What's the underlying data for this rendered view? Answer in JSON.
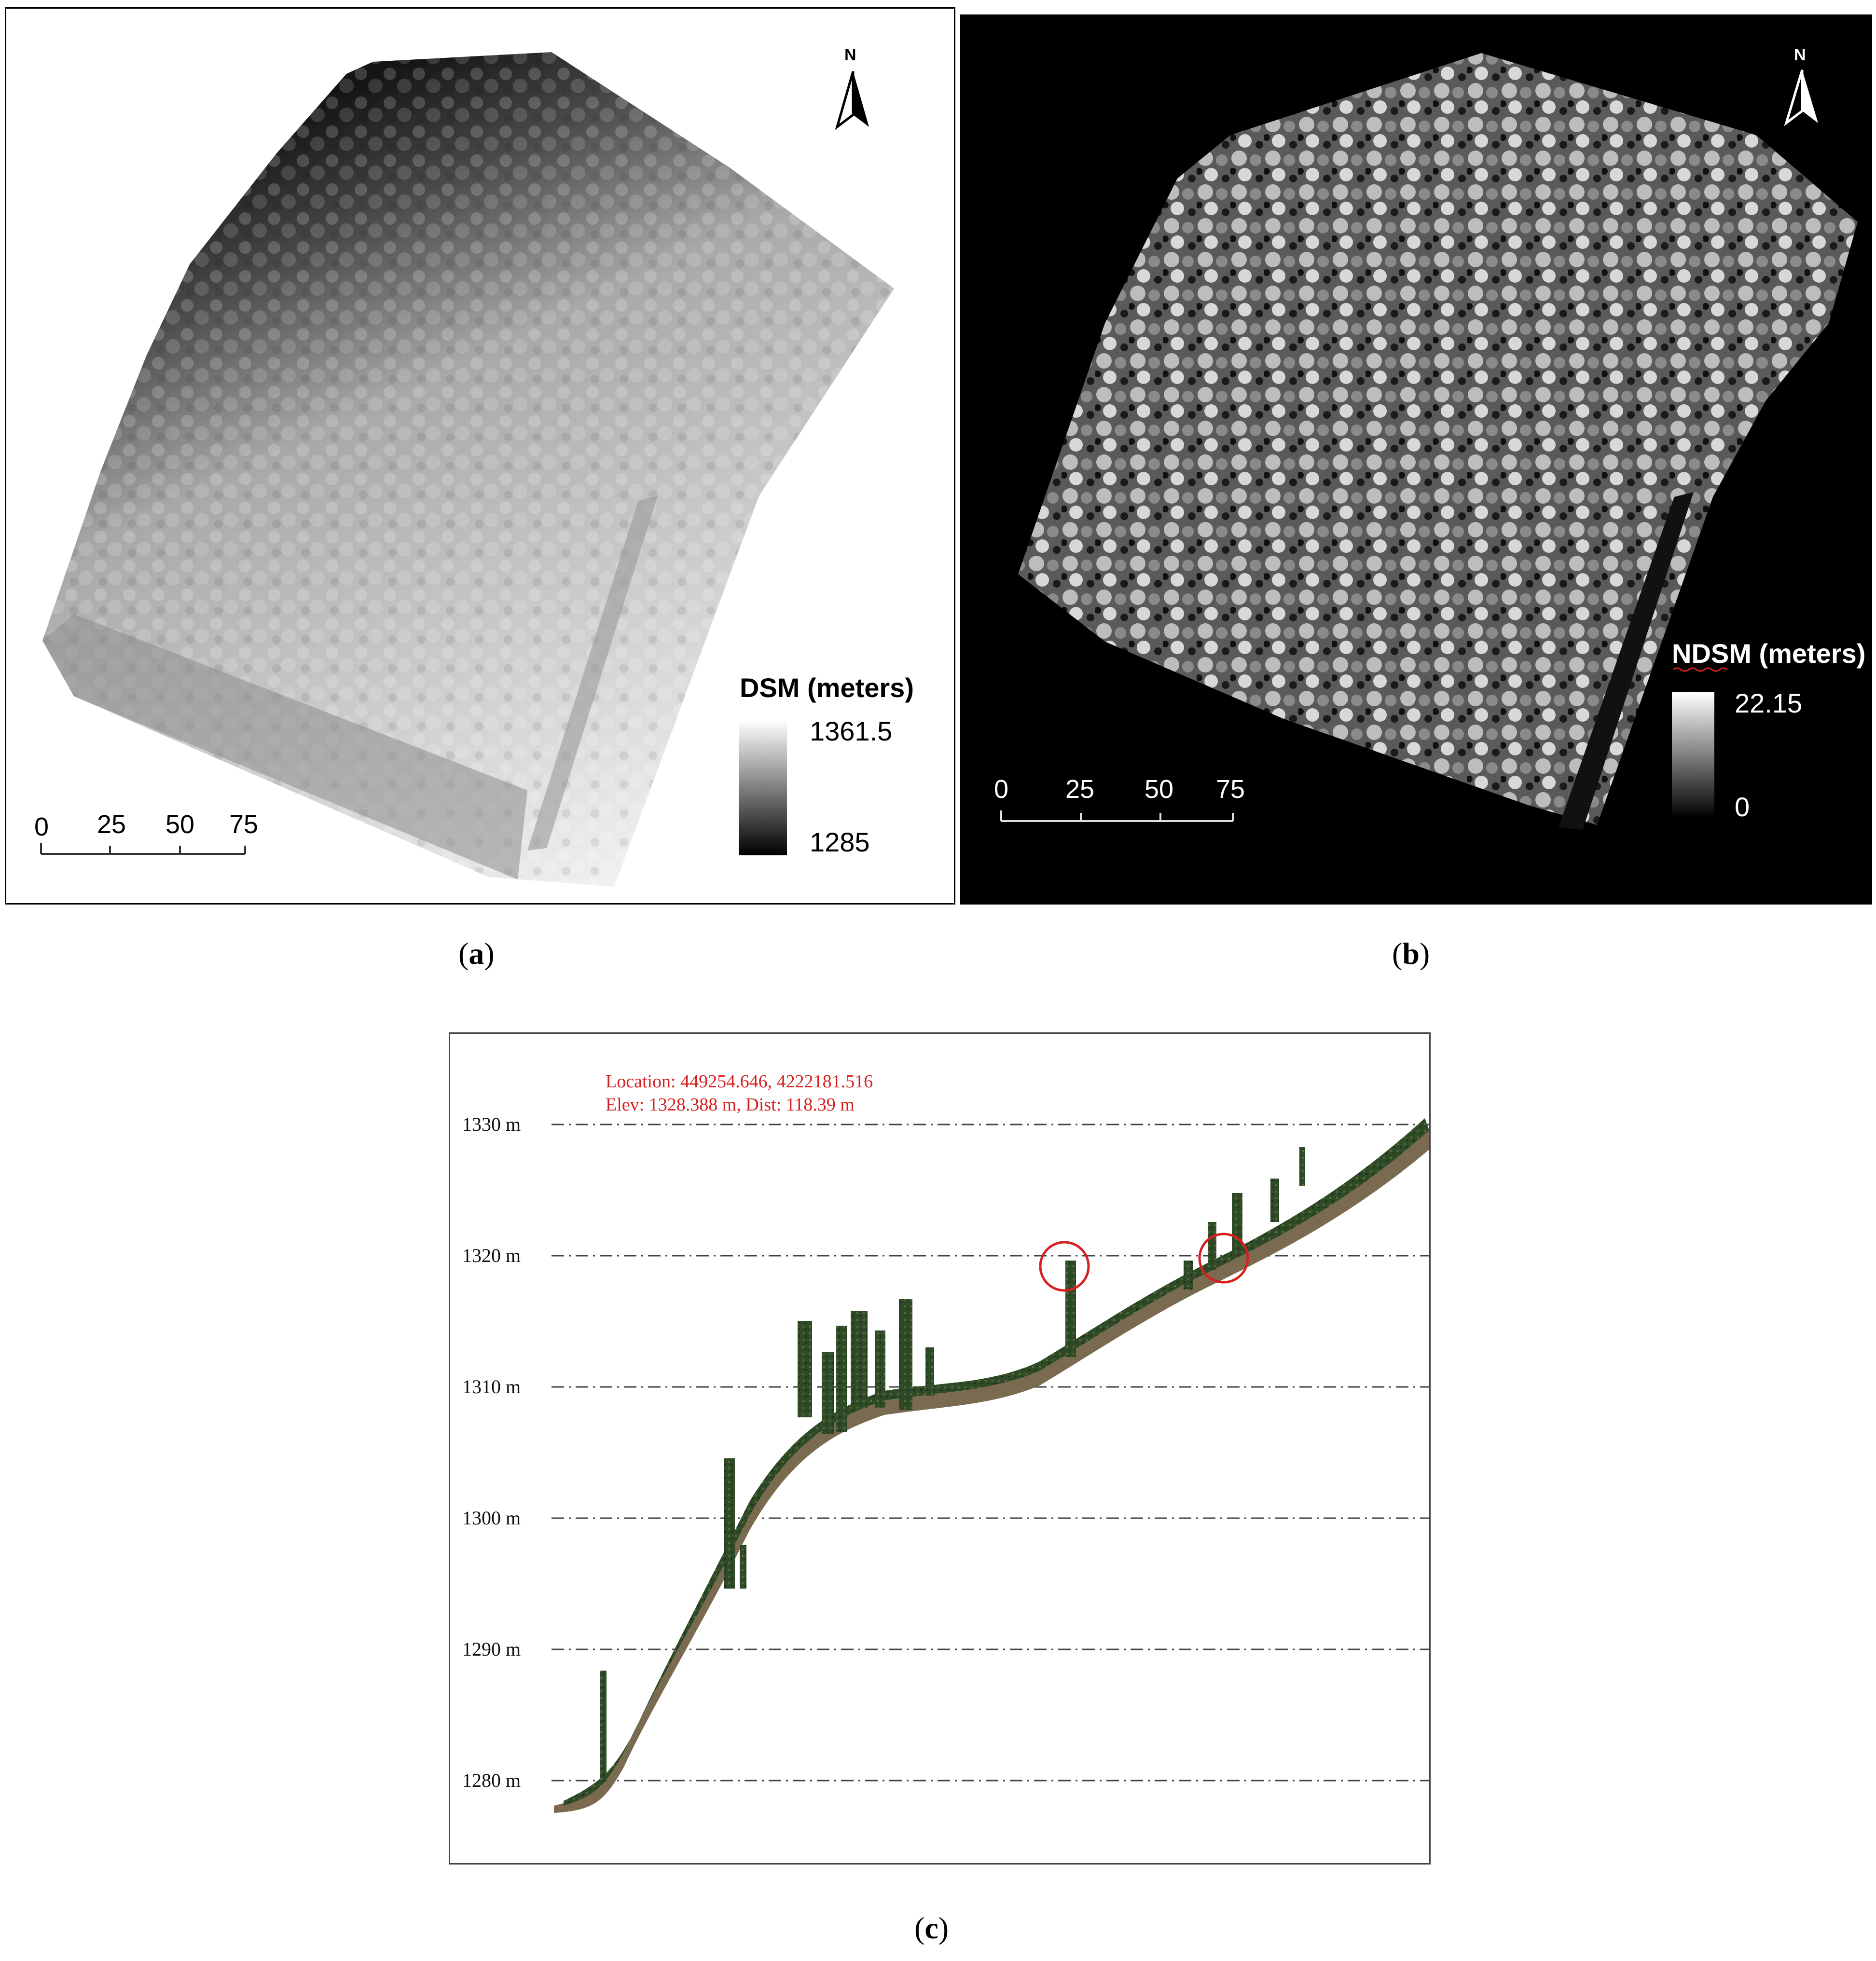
{
  "panel_a": {
    "legend_title": "DSM (meters)",
    "legend_max": "1361.5",
    "legend_min": "1285",
    "north": "N",
    "scale": [
      "0",
      "25",
      "50",
      "75"
    ],
    "caption_letter": "a"
  },
  "panel_b": {
    "legend_title": "NDSM (meters)",
    "legend_max": "22.15",
    "legend_min": "0",
    "north": "N",
    "scale": [
      "0",
      "25",
      "50",
      "75"
    ],
    "caption_letter": "b"
  },
  "panel_c": {
    "info_line1": "Location: 449254.646, 4222181.516",
    "info_line2": "Elev: 1328.388 m, Dist: 118.39 m",
    "y_labels": [
      "1330 m",
      "1320 m",
      "1310 m",
      "1300 m",
      "1290 m",
      "1280 m"
    ],
    "caption_letter": "c",
    "marker_color": "#d62020",
    "vegetation_color": "#2f4a26",
    "ground_color": "#7a6a50"
  }
}
